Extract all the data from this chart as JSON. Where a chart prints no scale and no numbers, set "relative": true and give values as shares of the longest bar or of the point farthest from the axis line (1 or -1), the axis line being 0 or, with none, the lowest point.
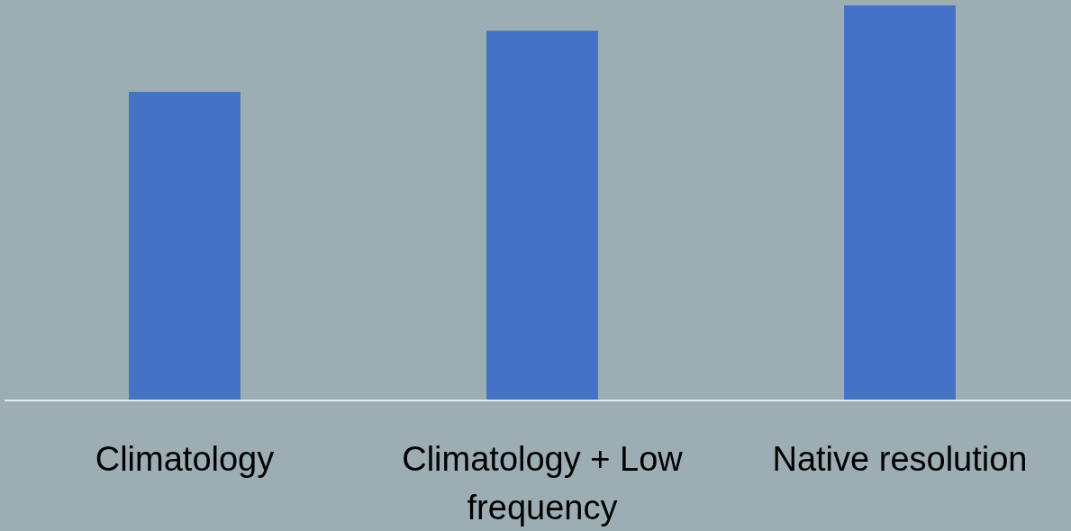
{
  "chart_data": {
    "type": "bar",
    "relative": true,
    "categories": [
      "Climatology",
      "Climatology + Low frequency",
      "Native resolution"
    ],
    "values": [
      0.781,
      0.936,
      1
    ],
    "color": "#4472c4"
  }
}
